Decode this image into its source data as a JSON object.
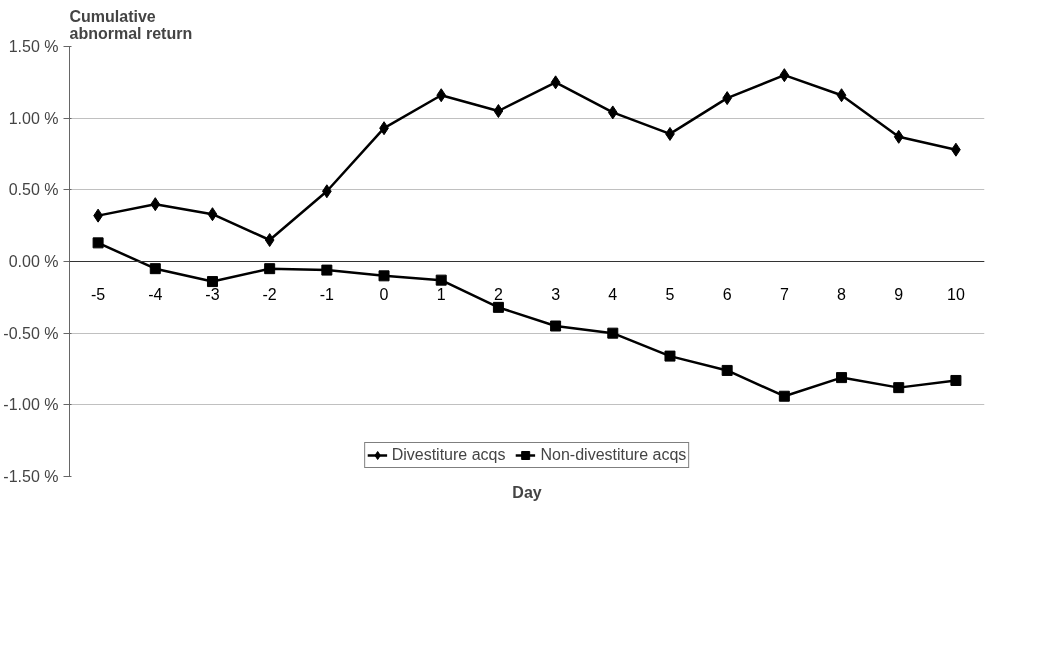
{
  "chart_data": {
    "type": "line",
    "title": "Cumulative\nabnormal return",
    "xlabel": "Day",
    "categories": [
      "-5",
      "-4",
      "-3",
      "-2",
      "-1",
      "0",
      "1",
      "2",
      "3",
      "4",
      "5",
      "6",
      "7",
      "8",
      "9",
      "10"
    ],
    "series": [
      {
        "name": "Divestiture acqs",
        "color": "#000000",
        "marker": "diamond",
        "values": [
          0.32,
          0.4,
          0.33,
          0.15,
          0.49,
          0.93,
          1.16,
          1.05,
          1.25,
          1.04,
          0.89,
          1.14,
          1.3,
          1.16,
          0.87,
          0.78
        ]
      },
      {
        "name": "Non-divestiture acqs",
        "color": "#000000",
        "marker": "square",
        "values": [
          0.13,
          -0.05,
          -0.14,
          -0.05,
          -0.06,
          -0.1,
          -0.13,
          -0.32,
          -0.45,
          -0.5,
          -0.66,
          -0.76,
          -0.94,
          -0.81,
          -0.88,
          -0.83
        ]
      }
    ],
    "ylim": [
      -1.5,
      1.5
    ],
    "yticks": [
      {
        "value": -1.5,
        "label": "-1.50 %"
      },
      {
        "value": -1.0,
        "label": "-1.00 %"
      },
      {
        "value": -0.5,
        "label": "-0.50 %"
      },
      {
        "value": 0,
        "label": "0.00 %"
      },
      {
        "value": 0.5,
        "label": "0.50 %"
      },
      {
        "value": 1.0,
        "label": "1.00 %"
      },
      {
        "value": 1.5,
        "label": "1.50 %"
      }
    ],
    "grid": "y",
    "legend": "bottom",
    "line_style": "solid"
  }
}
